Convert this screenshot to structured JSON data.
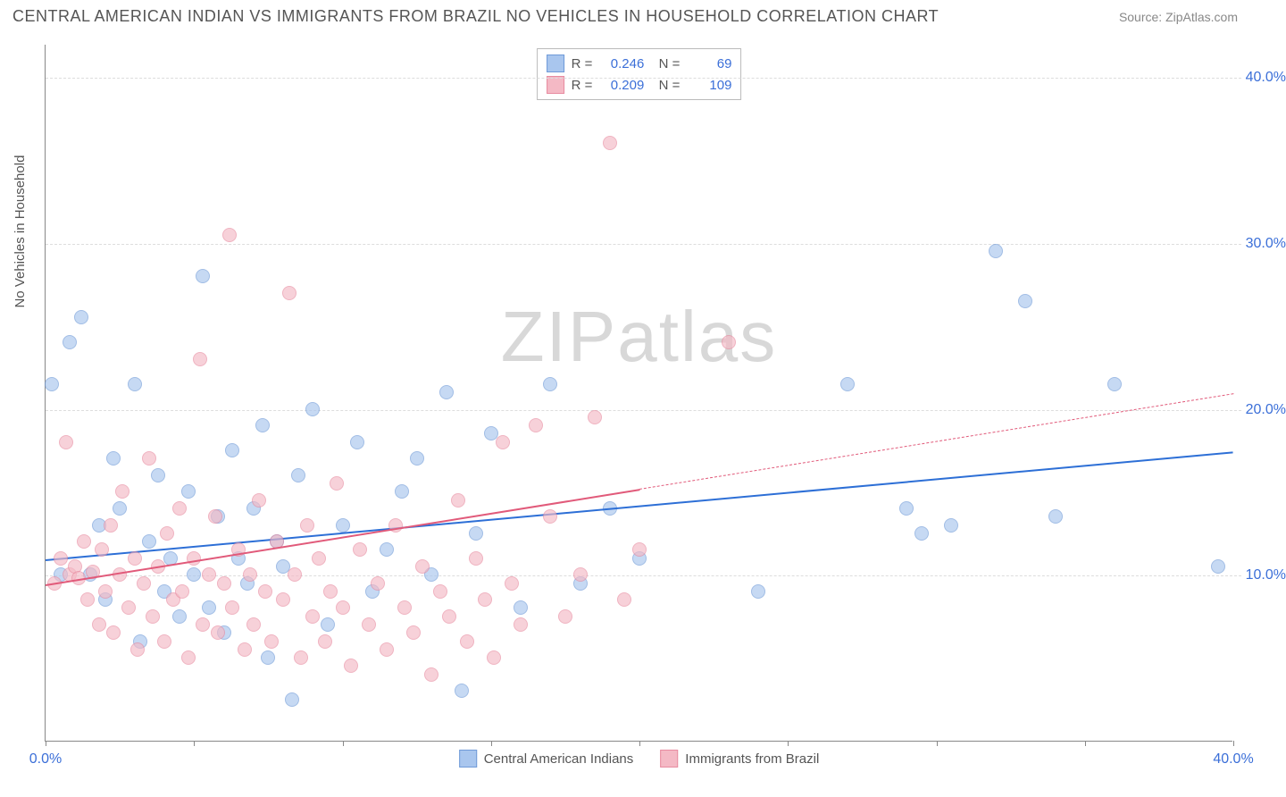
{
  "header": {
    "title": "CENTRAL AMERICAN INDIAN VS IMMIGRANTS FROM BRAZIL NO VEHICLES IN HOUSEHOLD CORRELATION CHART",
    "source": "Source: ZipAtlas.com"
  },
  "ylabel": "No Vehicles in Household",
  "watermark": {
    "part1": "ZIP",
    "part2": "atlas"
  },
  "axes": {
    "xlim": [
      0,
      40
    ],
    "ylim": [
      0,
      42
    ],
    "yticks": [
      10,
      20,
      30,
      40
    ],
    "ytick_labels": [
      "10.0%",
      "20.0%",
      "30.0%",
      "40.0%"
    ],
    "xticks": [
      0,
      5,
      10,
      15,
      20,
      25,
      30,
      35,
      40
    ],
    "xtick_labels_show": {
      "0": "0.0%",
      "40": "40.0%"
    },
    "grid_color": "#dddddd"
  },
  "series": [
    {
      "name": "Central American Indians",
      "fill": "#a9c6ee",
      "stroke": "#6f9ad8",
      "line_color": "#2d6fd6",
      "r": 0.246,
      "n": 69,
      "trend": {
        "x1": 0,
        "y1": 11,
        "x2": 40,
        "y2": 17.5,
        "solid_until": 40
      },
      "points": [
        [
          0.2,
          21.5
        ],
        [
          0.5,
          10
        ],
        [
          0.8,
          24
        ],
        [
          1.2,
          25.5
        ],
        [
          1.5,
          10
        ],
        [
          1.8,
          13
        ],
        [
          2.0,
          8.5
        ],
        [
          2.3,
          17
        ],
        [
          2.5,
          14
        ],
        [
          3.0,
          21.5
        ],
        [
          3.2,
          6
        ],
        [
          3.5,
          12
        ],
        [
          3.8,
          16
        ],
        [
          4.0,
          9
        ],
        [
          4.2,
          11
        ],
        [
          4.5,
          7.5
        ],
        [
          4.8,
          15
        ],
        [
          5.0,
          10
        ],
        [
          5.3,
          28
        ],
        [
          5.5,
          8
        ],
        [
          5.8,
          13.5
        ],
        [
          6.0,
          6.5
        ],
        [
          6.3,
          17.5
        ],
        [
          6.5,
          11
        ],
        [
          6.8,
          9.5
        ],
        [
          7.0,
          14
        ],
        [
          7.3,
          19
        ],
        [
          7.5,
          5
        ],
        [
          7.8,
          12
        ],
        [
          8.0,
          10.5
        ],
        [
          8.3,
          2.5
        ],
        [
          8.5,
          16
        ],
        [
          9.0,
          20
        ],
        [
          9.5,
          7
        ],
        [
          10.0,
          13
        ],
        [
          10.5,
          18
        ],
        [
          11.0,
          9
        ],
        [
          11.5,
          11.5
        ],
        [
          12.0,
          15
        ],
        [
          12.5,
          17
        ],
        [
          13.0,
          10
        ],
        [
          13.5,
          21
        ],
        [
          14.0,
          3
        ],
        [
          14.5,
          12.5
        ],
        [
          15.0,
          18.5
        ],
        [
          16.0,
          8
        ],
        [
          17.0,
          21.5
        ],
        [
          18.0,
          9.5
        ],
        [
          19.0,
          14
        ],
        [
          20.0,
          11
        ],
        [
          24.0,
          9
        ],
        [
          27.0,
          21.5
        ],
        [
          29.0,
          14
        ],
        [
          29.5,
          12.5
        ],
        [
          30.5,
          13
        ],
        [
          32.0,
          29.5
        ],
        [
          33.0,
          26.5
        ],
        [
          34.0,
          13.5
        ],
        [
          36.0,
          21.5
        ],
        [
          39.5,
          10.5
        ]
      ]
    },
    {
      "name": "Immigrants from Brazil",
      "fill": "#f4b9c5",
      "stroke": "#e88ba0",
      "line_color": "#e15a7a",
      "r": 0.209,
      "n": 109,
      "trend": {
        "x1": 0,
        "y1": 9.5,
        "x2": 40,
        "y2": 21,
        "solid_until": 20
      },
      "points": [
        [
          0.3,
          9.5
        ],
        [
          0.5,
          11
        ],
        [
          0.7,
          18
        ],
        [
          0.8,
          10
        ],
        [
          1.0,
          10.5
        ],
        [
          1.1,
          9.8
        ],
        [
          1.3,
          12
        ],
        [
          1.4,
          8.5
        ],
        [
          1.6,
          10.2
        ],
        [
          1.8,
          7
        ],
        [
          1.9,
          11.5
        ],
        [
          2.0,
          9
        ],
        [
          2.2,
          13
        ],
        [
          2.3,
          6.5
        ],
        [
          2.5,
          10
        ],
        [
          2.6,
          15
        ],
        [
          2.8,
          8
        ],
        [
          3.0,
          11
        ],
        [
          3.1,
          5.5
        ],
        [
          3.3,
          9.5
        ],
        [
          3.5,
          17
        ],
        [
          3.6,
          7.5
        ],
        [
          3.8,
          10.5
        ],
        [
          4.0,
          6
        ],
        [
          4.1,
          12.5
        ],
        [
          4.3,
          8.5
        ],
        [
          4.5,
          14
        ],
        [
          4.6,
          9
        ],
        [
          4.8,
          5
        ],
        [
          5.0,
          11
        ],
        [
          5.2,
          23
        ],
        [
          5.3,
          7
        ],
        [
          5.5,
          10
        ],
        [
          5.7,
          13.5
        ],
        [
          5.8,
          6.5
        ],
        [
          6.0,
          9.5
        ],
        [
          6.2,
          30.5
        ],
        [
          6.3,
          8
        ],
        [
          6.5,
          11.5
        ],
        [
          6.7,
          5.5
        ],
        [
          6.9,
          10
        ],
        [
          7.0,
          7
        ],
        [
          7.2,
          14.5
        ],
        [
          7.4,
          9
        ],
        [
          7.6,
          6
        ],
        [
          7.8,
          12
        ],
        [
          8.0,
          8.5
        ],
        [
          8.2,
          27
        ],
        [
          8.4,
          10
        ],
        [
          8.6,
          5
        ],
        [
          8.8,
          13
        ],
        [
          9.0,
          7.5
        ],
        [
          9.2,
          11
        ],
        [
          9.4,
          6
        ],
        [
          9.6,
          9
        ],
        [
          9.8,
          15.5
        ],
        [
          10.0,
          8
        ],
        [
          10.3,
          4.5
        ],
        [
          10.6,
          11.5
        ],
        [
          10.9,
          7
        ],
        [
          11.2,
          9.5
        ],
        [
          11.5,
          5.5
        ],
        [
          11.8,
          13
        ],
        [
          12.1,
          8
        ],
        [
          12.4,
          6.5
        ],
        [
          12.7,
          10.5
        ],
        [
          13.0,
          4
        ],
        [
          13.3,
          9
        ],
        [
          13.6,
          7.5
        ],
        [
          13.9,
          14.5
        ],
        [
          14.2,
          6
        ],
        [
          14.5,
          11
        ],
        [
          14.8,
          8.5
        ],
        [
          15.1,
          5
        ],
        [
          15.4,
          18
        ],
        [
          15.7,
          9.5
        ],
        [
          16.0,
          7
        ],
        [
          16.5,
          19
        ],
        [
          17.0,
          13.5
        ],
        [
          17.5,
          7.5
        ],
        [
          18.0,
          10
        ],
        [
          18.5,
          19.5
        ],
        [
          19.0,
          36
        ],
        [
          19.5,
          8.5
        ],
        [
          20.0,
          11.5
        ],
        [
          23.0,
          24
        ]
      ]
    }
  ],
  "legend_bottom": [
    {
      "label": "Central American Indians",
      "series": 0
    },
    {
      "label": "Immigrants from Brazil",
      "series": 1
    }
  ]
}
